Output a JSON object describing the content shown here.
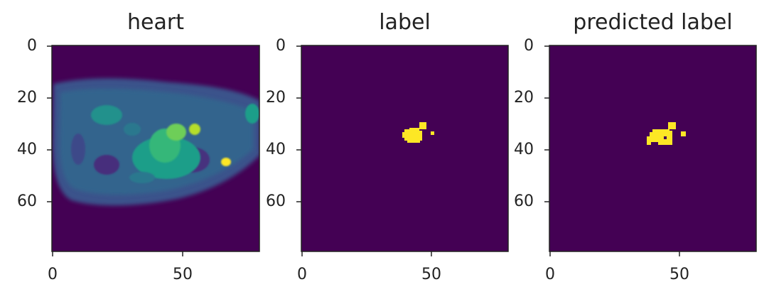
{
  "panels": [
    {
      "id": "heart",
      "title": "heart",
      "kind": "image",
      "y_ticks": [
        "0",
        "20",
        "40",
        "60"
      ],
      "x_ticks": [
        "0",
        "50"
      ]
    },
    {
      "id": "label",
      "title": "label",
      "kind": "mask",
      "y_ticks": [
        "0",
        "20",
        "40",
        "60"
      ],
      "x_ticks": [
        "0",
        "50"
      ]
    },
    {
      "id": "predicted",
      "title": "predicted label",
      "kind": "mask",
      "y_ticks": [
        "0",
        "20",
        "40",
        "60"
      ],
      "x_ticks": [
        "0",
        "50"
      ]
    }
  ],
  "image_extent": [
    0,
    80,
    0,
    80
  ],
  "colormap": {
    "name": "viridis",
    "low": "#440154",
    "mid": "#21918c",
    "high": "#fde725",
    "green": "#35b779"
  }
}
